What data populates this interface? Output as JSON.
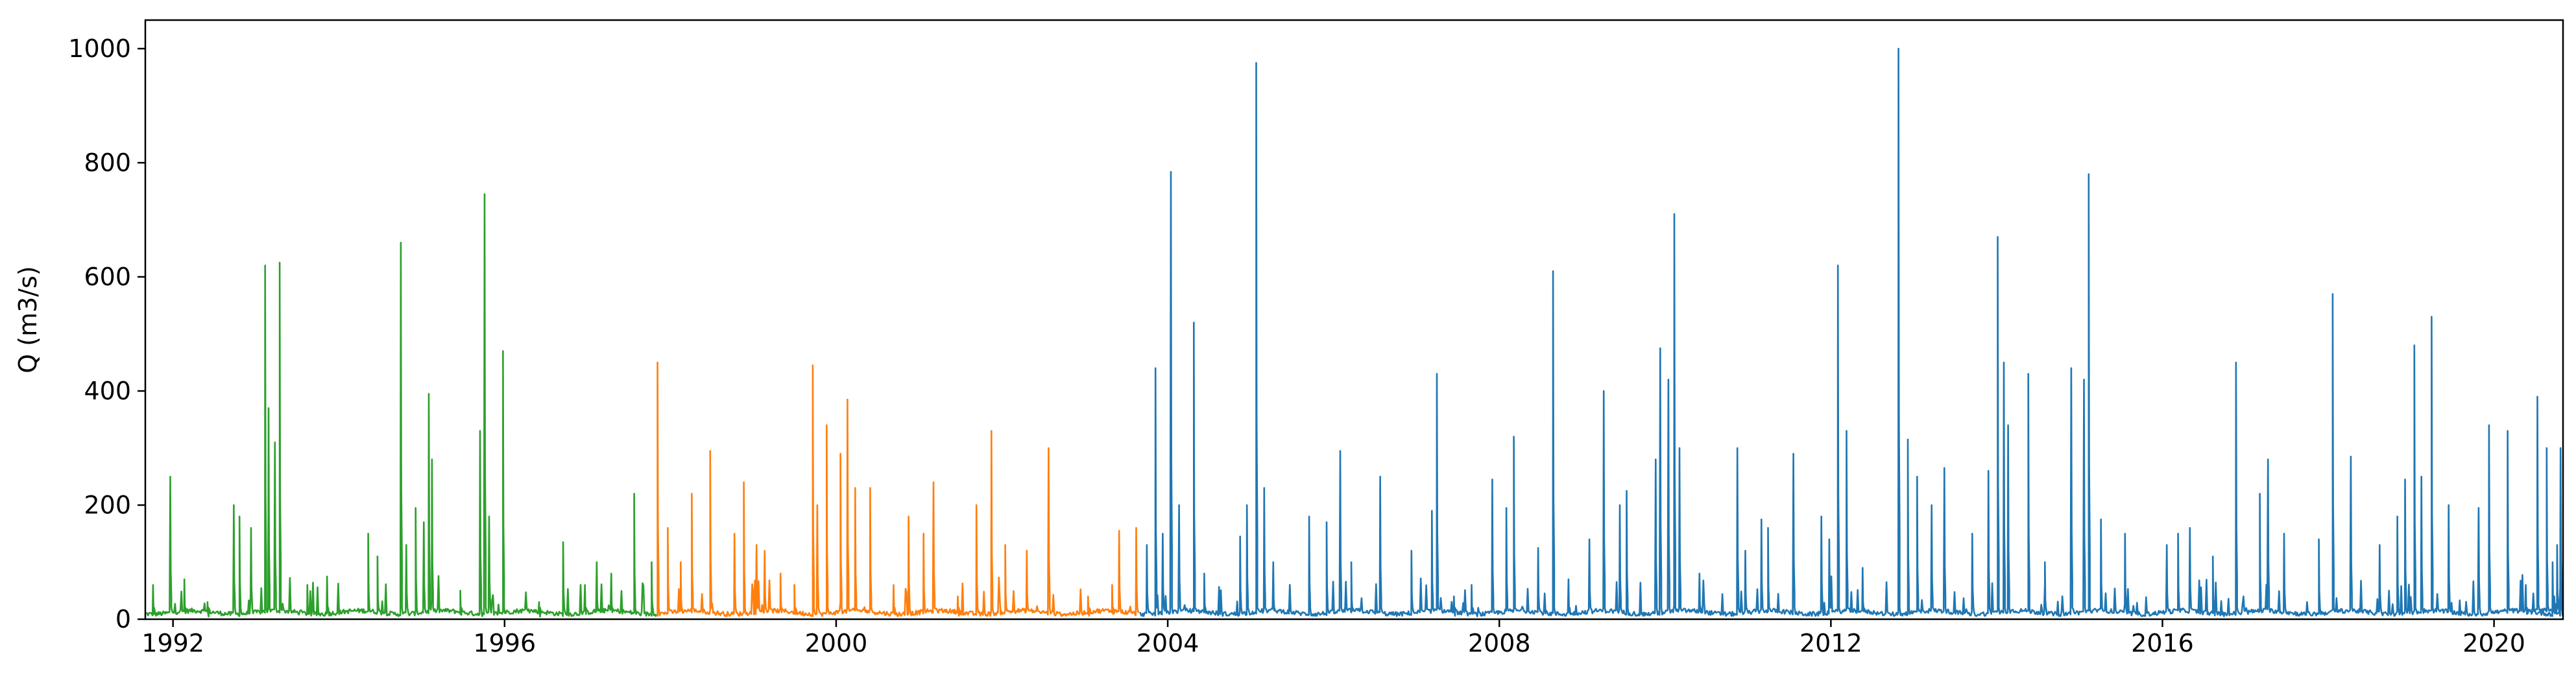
{
  "chart_data": {
    "type": "line",
    "title": "",
    "xlabel": "",
    "ylabel": "Q (m3/s)",
    "xlim": [
      "1991-09-01",
      "2020-10-31"
    ],
    "ylim": [
      0,
      1050
    ],
    "xticks": [
      1992,
      1996,
      2000,
      2004,
      2008,
      2012,
      2016,
      2020
    ],
    "yticks": [
      0,
      200,
      400,
      600,
      800,
      1000
    ],
    "grid": false,
    "legend": "none",
    "series": [
      {
        "color": "#2ca02c",
        "start": "1991-09-01",
        "end": "1997-10-31",
        "baseflow": 5,
        "peaks": [
          [
            "1991-10-05",
            60
          ],
          [
            "1991-12-20",
            250
          ],
          [
            "1992-02-20",
            70
          ],
          [
            "1992-06-01",
            30
          ],
          [
            "1992-09-25",
            200
          ],
          [
            "1992-10-20",
            180
          ],
          [
            "1992-12-10",
            160
          ],
          [
            "1993-02-10",
            620
          ],
          [
            "1993-02-25",
            370
          ],
          [
            "1993-03-25",
            310
          ],
          [
            "1993-04-15",
            625
          ],
          [
            "1993-08-15",
            60
          ],
          [
            "1993-11-10",
            75
          ],
          [
            "1994-05-10",
            150
          ],
          [
            "1994-06-20",
            110
          ],
          [
            "1994-10-01",
            660
          ],
          [
            "1994-10-25",
            130
          ],
          [
            "1994-12-05",
            195
          ],
          [
            "1995-01-10",
            170
          ],
          [
            "1995-02-01",
            395
          ],
          [
            "1995-02-15",
            280
          ],
          [
            "1995-06-20",
            50
          ],
          [
            "1995-09-15",
            330
          ],
          [
            "1995-10-05",
            745
          ],
          [
            "1995-10-25",
            180
          ],
          [
            "1995-12-25",
            470
          ],
          [
            "1996-06-01",
            30
          ],
          [
            "1996-09-15",
            135
          ],
          [
            "1996-12-20",
            60
          ],
          [
            "1997-02-10",
            100
          ],
          [
            "1997-04-15",
            80
          ],
          [
            "1997-07-25",
            220
          ],
          [
            "1997-10-10",
            100
          ]
        ]
      },
      {
        "color": "#ff7f0e",
        "start": "1997-11-01",
        "end": "2003-08-31",
        "baseflow": 5,
        "peaks": [
          [
            "1997-11-05",
            450
          ],
          [
            "1997-12-20",
            160
          ],
          [
            "1998-02-15",
            100
          ],
          [
            "1998-04-05",
            220
          ],
          [
            "1998-06-25",
            295
          ],
          [
            "1998-10-10",
            150
          ],
          [
            "1998-11-20",
            240
          ],
          [
            "1999-01-15",
            130
          ],
          [
            "1999-02-20",
            120
          ],
          [
            "1999-05-01",
            80
          ],
          [
            "1999-07-01",
            60
          ],
          [
            "1999-09-20",
            445
          ],
          [
            "1999-10-10",
            200
          ],
          [
            "1999-11-20",
            340
          ],
          [
            "2000-01-20",
            290
          ],
          [
            "2000-02-20",
            385
          ],
          [
            "2000-03-25",
            230
          ],
          [
            "2000-05-30",
            230
          ],
          [
            "2000-09-10",
            60
          ],
          [
            "2000-11-15",
            180
          ],
          [
            "2001-01-20",
            150
          ],
          [
            "2001-03-05",
            240
          ],
          [
            "2001-06-20",
            40
          ],
          [
            "2001-09-10",
            200
          ],
          [
            "2001-11-15",
            330
          ],
          [
            "2002-01-15",
            130
          ],
          [
            "2002-04-20",
            120
          ],
          [
            "2002-07-25",
            300
          ],
          [
            "2003-01-15",
            40
          ],
          [
            "2003-05-01",
            60
          ],
          [
            "2003-06-01",
            155
          ],
          [
            "2003-08-15",
            160
          ]
        ]
      },
      {
        "color": "#1f77b4",
        "start": "2003-09-01",
        "end": "2020-10-31",
        "baseflow": 5,
        "peaks": [
          [
            "2003-10-01",
            130
          ],
          [
            "2003-11-08",
            440
          ],
          [
            "2003-12-10",
            150
          ],
          [
            "2004-01-15",
            784
          ],
          [
            "2004-02-20",
            200
          ],
          [
            "2004-04-25",
            520
          ],
          [
            "2004-06-10",
            80
          ],
          [
            "2004-11-15",
            145
          ],
          [
            "2004-12-15",
            200
          ],
          [
            "2005-01-25",
            975
          ],
          [
            "2005-03-01",
            230
          ],
          [
            "2005-04-10",
            100
          ],
          [
            "2005-09-15",
            180
          ],
          [
            "2005-12-01",
            170
          ],
          [
            "2006-01-30",
            295
          ],
          [
            "2006-03-20",
            100
          ],
          [
            "2006-07-25",
            250
          ],
          [
            "2006-12-10",
            120
          ],
          [
            "2007-03-10",
            190
          ],
          [
            "2007-04-01",
            430
          ],
          [
            "2007-06-15",
            40
          ],
          [
            "2007-09-01",
            60
          ],
          [
            "2007-12-01",
            245
          ],
          [
            "2008-02-01",
            195
          ],
          [
            "2008-03-05",
            320
          ],
          [
            "2008-06-20",
            125
          ],
          [
            "2008-08-25",
            610
          ],
          [
            "2008-11-01",
            70
          ],
          [
            "2009-02-01",
            140
          ],
          [
            "2009-04-05",
            400
          ],
          [
            "2009-06-15",
            200
          ],
          [
            "2009-07-15",
            225
          ],
          [
            "2009-11-20",
            280
          ],
          [
            "2009-12-10",
            475
          ],
          [
            "2010-01-15",
            420
          ],
          [
            "2010-02-10",
            710
          ],
          [
            "2010-03-05",
            300
          ],
          [
            "2010-06-01",
            80
          ],
          [
            "2010-11-15",
            300
          ],
          [
            "2010-12-20",
            120
          ],
          [
            "2011-03-01",
            175
          ],
          [
            "2011-03-30",
            160
          ],
          [
            "2011-07-20",
            290
          ],
          [
            "2011-11-20",
            180
          ],
          [
            "2011-12-25",
            140
          ],
          [
            "2012-02-01",
            620
          ],
          [
            "2012-03-10",
            330
          ],
          [
            "2012-05-20",
            90
          ],
          [
            "2012-10-25",
            1000
          ],
          [
            "2012-12-05",
            315
          ],
          [
            "2013-01-15",
            250
          ],
          [
            "2013-03-20",
            200
          ],
          [
            "2013-05-15",
            265
          ],
          [
            "2013-09-15",
            150
          ],
          [
            "2013-11-25",
            260
          ],
          [
            "2014-01-05",
            670
          ],
          [
            "2014-02-01",
            450
          ],
          [
            "2014-02-20",
            340
          ],
          [
            "2014-05-20",
            430
          ],
          [
            "2014-08-01",
            100
          ],
          [
            "2014-11-25",
            440
          ],
          [
            "2015-01-20",
            420
          ],
          [
            "2015-02-10",
            780
          ],
          [
            "2015-04-05",
            175
          ],
          [
            "2015-07-20",
            150
          ],
          [
            "2016-01-20",
            130
          ],
          [
            "2016-03-10",
            150
          ],
          [
            "2016-05-01",
            160
          ],
          [
            "2016-08-10",
            110
          ],
          [
            "2016-11-20",
            450
          ],
          [
            "2017-03-05",
            220
          ],
          [
            "2017-04-10",
            280
          ],
          [
            "2017-06-20",
            150
          ],
          [
            "2017-11-20",
            140
          ],
          [
            "2018-01-20",
            570
          ],
          [
            "2018-04-10",
            285
          ],
          [
            "2018-08-15",
            130
          ],
          [
            "2018-11-01",
            180
          ],
          [
            "2018-12-05",
            245
          ],
          [
            "2019-01-15",
            480
          ],
          [
            "2019-02-15",
            250
          ],
          [
            "2019-04-01",
            530
          ],
          [
            "2019-06-15",
            200
          ],
          [
            "2019-10-25",
            195
          ],
          [
            "2019-12-10",
            340
          ],
          [
            "2020-03-01",
            330
          ],
          [
            "2020-05-20",
            60
          ],
          [
            "2020-09-15",
            100
          ],
          [
            "2020-10-20",
            300
          ]
        ]
      },
      {
        "color": "#1f77b4",
        "start": "2020-06-15",
        "end": "2020-10-31",
        "baseflow": 10,
        "peaks": [
          [
            "2020-07-10",
            390
          ],
          [
            "2020-08-20",
            300
          ],
          [
            "2020-10-05",
            130
          ]
        ]
      }
    ]
  }
}
